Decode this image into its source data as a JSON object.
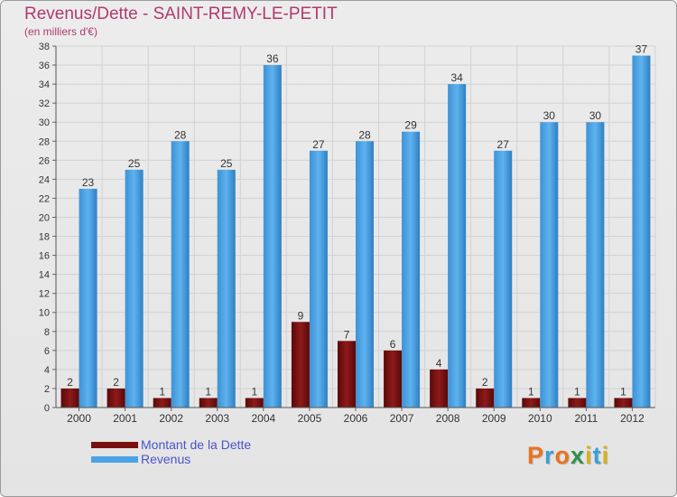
{
  "header": {
    "title": "Revenus/Dette - SAINT-REMY-LE-PETIT",
    "subtitle": "(en milliers d'€)"
  },
  "legend": {
    "items": [
      {
        "label": "Montant de la Dette",
        "color": "#7a0f0f"
      },
      {
        "label": "Revenus",
        "color": "#4aa3e6"
      }
    ]
  },
  "logo": {
    "text": "Proxiti",
    "colors": [
      "#e8731f",
      "#3aa0d8",
      "#e8731f",
      "#2f8f4e",
      "#d8b020",
      "#3aa0d8",
      "#d8b020"
    ]
  },
  "chart_data": {
    "type": "bar",
    "title": "Revenus/Dette - SAINT-REMY-LE-PETIT",
    "subtitle": "(en milliers d'€)",
    "categories": [
      "2000",
      "2001",
      "2002",
      "2003",
      "2004",
      "2005",
      "2006",
      "2007",
      "2008",
      "2009",
      "2010",
      "2011",
      "2012"
    ],
    "series": [
      {
        "name": "Montant de la Dette",
        "color": "#7a0f0f",
        "values": [
          2,
          2,
          1,
          1,
          1,
          9,
          7,
          6,
          4,
          2,
          1,
          1,
          1
        ]
      },
      {
        "name": "Revenus",
        "color": "#4aa3e6",
        "values": [
          23,
          25,
          28,
          25,
          36,
          27,
          28,
          29,
          34,
          27,
          30,
          30,
          37
        ]
      }
    ],
    "ylim": [
      0,
      38
    ],
    "yticks": [
      0,
      2,
      4,
      6,
      8,
      10,
      12,
      14,
      16,
      18,
      20,
      22,
      24,
      26,
      28,
      30,
      32,
      34,
      36,
      38
    ],
    "grid": true,
    "legend_position": "bottom-left"
  }
}
